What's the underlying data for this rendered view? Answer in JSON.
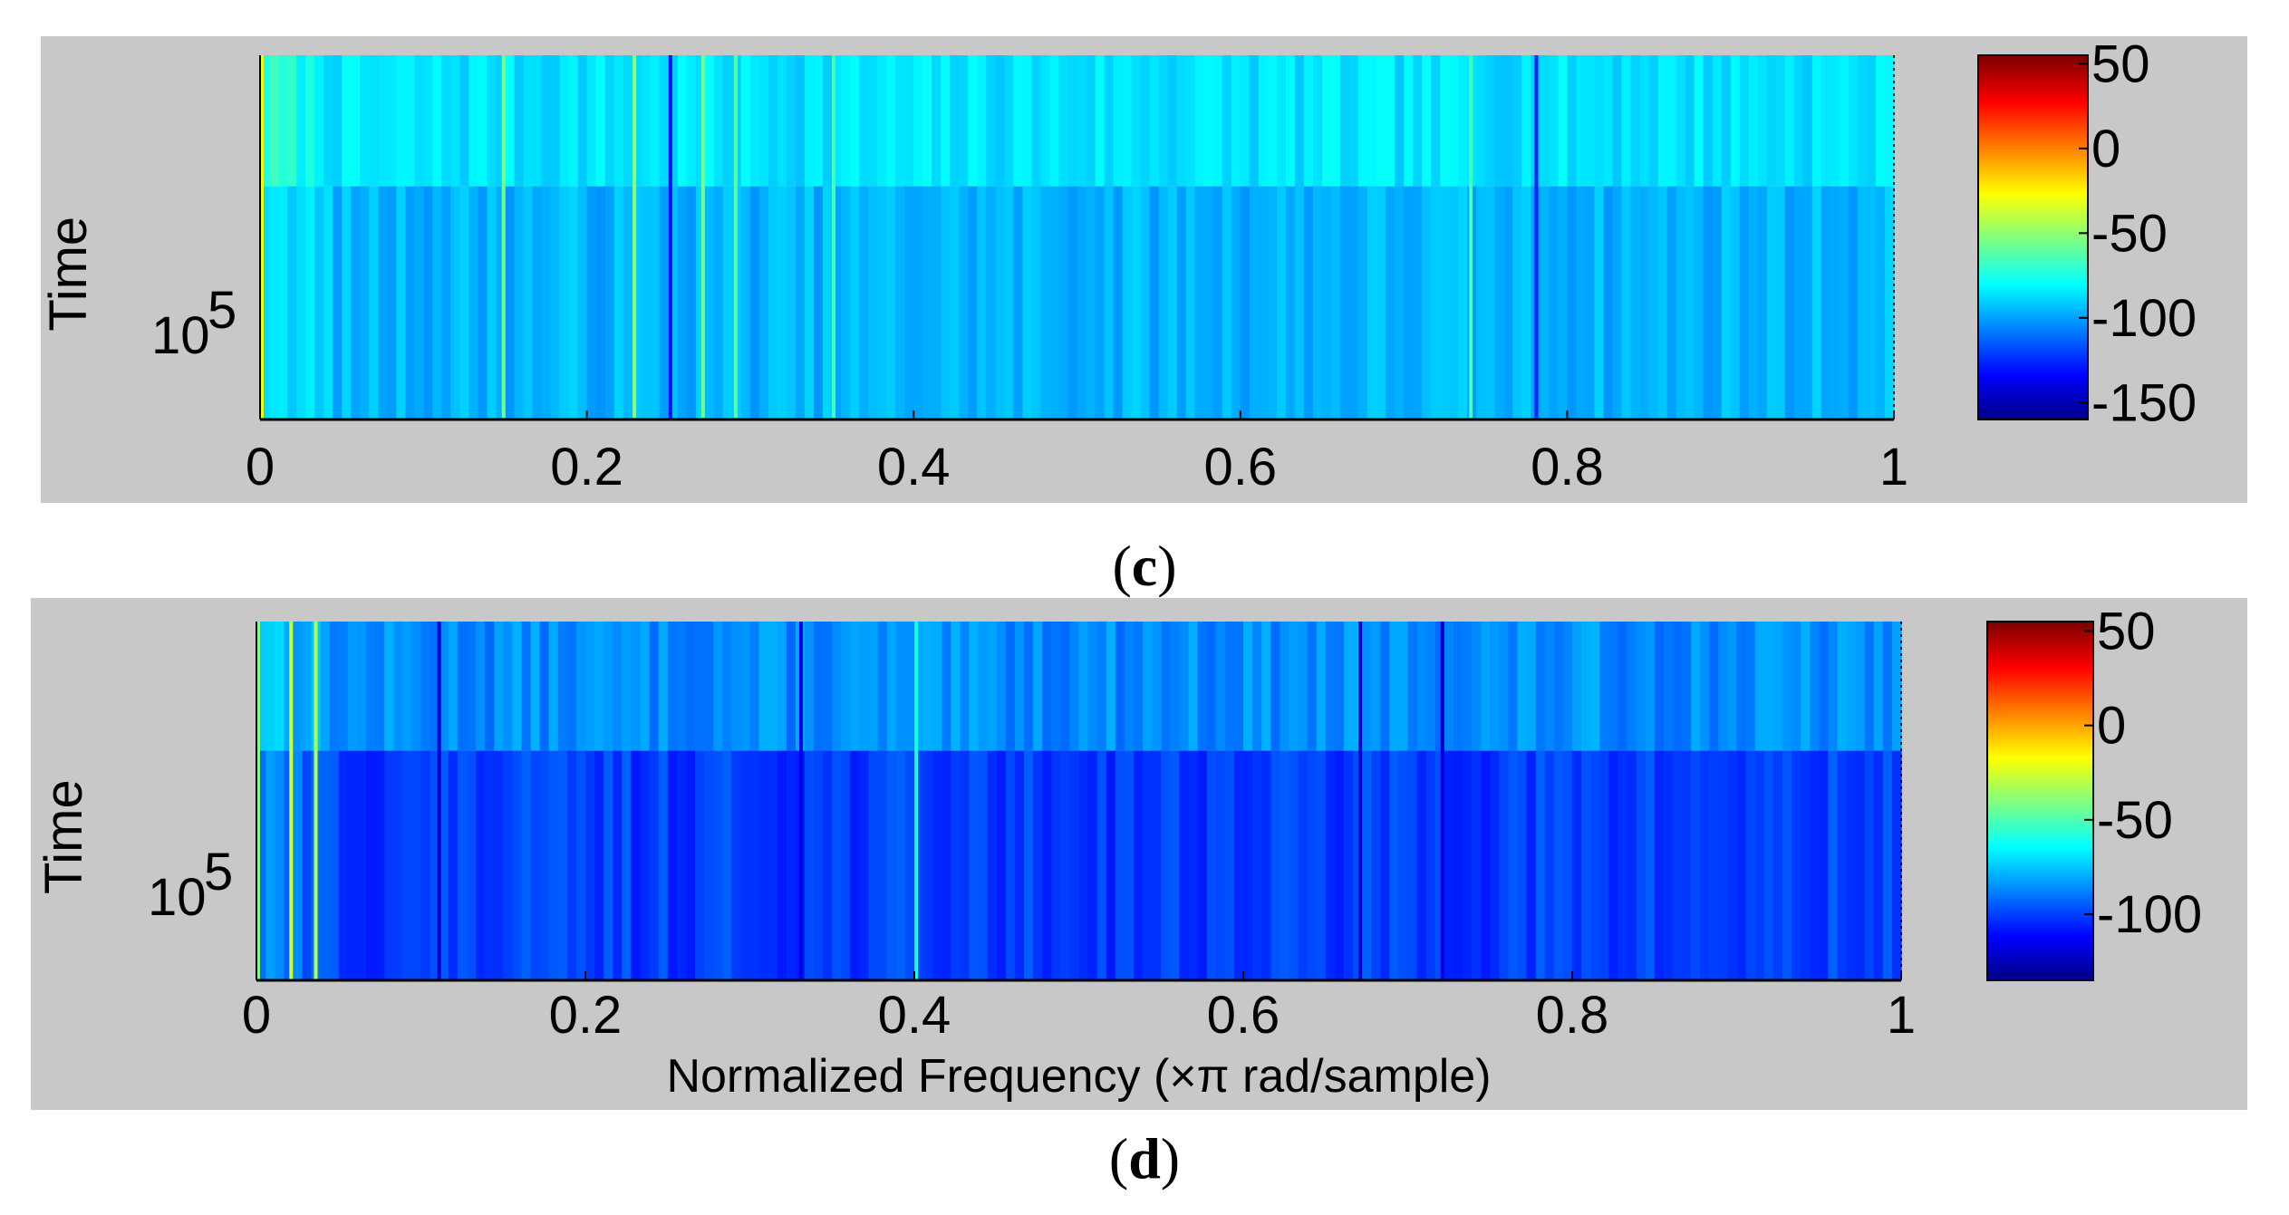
{
  "chart_data": [
    {
      "type": "heatmap",
      "panel_label": "(c)",
      "caption_open": "(",
      "caption_letter": "c",
      "caption_close": ")",
      "title": "",
      "xlabel": "",
      "ylabel": "Time",
      "y_ticks": [
        {
          "base": "10",
          "exp": "5"
        }
      ],
      "x_ticks": [
        "0",
        "0.2",
        "0.4",
        "0.6",
        "0.8",
        "1"
      ],
      "xlim": [
        0,
        1
      ],
      "colorbar": {
        "min": -160,
        "max": 55,
        "ticks": [
          "50",
          "0",
          "-50",
          "-100",
          "-150"
        ],
        "tick_values": [
          50,
          0,
          -50,
          -100,
          -150
        ]
      },
      "time_rows": 2,
      "typical_level_db": {
        "upper_row": -85,
        "lower_row": -95
      },
      "highlights": [
        {
          "x": 0.0,
          "value": -30
        },
        {
          "x": 0.148,
          "value": -55
        },
        {
          "x": 0.228,
          "value": -50
        },
        {
          "x": 0.27,
          "value": -55
        },
        {
          "x": 0.29,
          "value": -60
        },
        {
          "x": 0.35,
          "value": -65
        },
        {
          "x": 0.74,
          "value": -65
        },
        {
          "x": 0.78,
          "value": -125
        },
        {
          "x": 0.25,
          "value": -130
        }
      ]
    },
    {
      "type": "heatmap",
      "panel_label": "(d)",
      "caption_open": "(",
      "caption_letter": "d",
      "caption_close": ")",
      "title": "",
      "xlabel": "Normalized Frequency  (×π rad/sample)",
      "ylabel": "Time",
      "y_ticks": [
        {
          "base": "10",
          "exp": "5"
        }
      ],
      "x_ticks": [
        "0",
        "0.2",
        "0.4",
        "0.6",
        "0.8",
        "1"
      ],
      "xlim": [
        0,
        1
      ],
      "colorbar": {
        "min": -135,
        "max": 55,
        "ticks": [
          "50",
          "0",
          "-50",
          "-100"
        ],
        "tick_values": [
          50,
          0,
          -50,
          -100
        ]
      },
      "time_rows": 2,
      "typical_level_db": {
        "upper_row": -85,
        "lower_row": -100
      },
      "highlights": [
        {
          "x": 0.0,
          "value": -40
        },
        {
          "x": 0.02,
          "value": -25
        },
        {
          "x": 0.035,
          "value": -30
        },
        {
          "x": 0.11,
          "value": -120
        },
        {
          "x": 0.33,
          "value": -115
        },
        {
          "x": 0.4,
          "value": -60
        },
        {
          "x": 0.67,
          "value": -120
        },
        {
          "x": 0.72,
          "value": -118
        }
      ]
    }
  ]
}
